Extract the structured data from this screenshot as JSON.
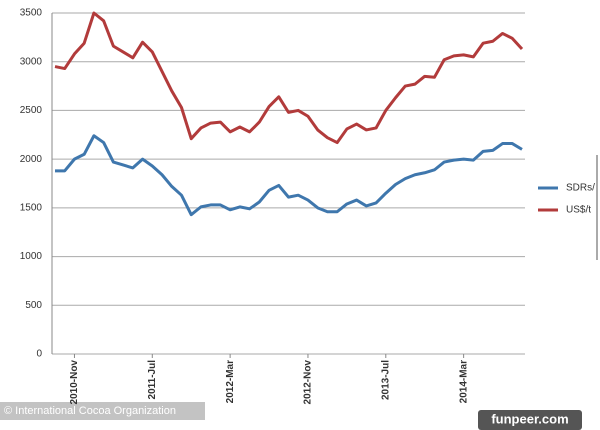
{
  "chart_data": {
    "type": "line",
    "categories": [
      null,
      null,
      "2010-Nov",
      null,
      null,
      null,
      null,
      null,
      null,
      null,
      "2011-Jul",
      null,
      null,
      null,
      null,
      null,
      null,
      null,
      "2012-Mar",
      null,
      null,
      null,
      null,
      null,
      null,
      null,
      "2012-Nov",
      null,
      null,
      null,
      null,
      null,
      null,
      null,
      "2013-Jul",
      null,
      null,
      null,
      null,
      null,
      null,
      null,
      "2014-Mar",
      null,
      null,
      null,
      null,
      null,
      null
    ],
    "series": [
      {
        "name": "SDRs/",
        "color": "#3f77ad",
        "values": [
          1880,
          1880,
          2000,
          2050,
          2240,
          2170,
          1970,
          1940,
          1910,
          2000,
          1930,
          1840,
          1720,
          1630,
          1430,
          1510,
          1530,
          1530,
          1480,
          1510,
          1490,
          1560,
          1680,
          1730,
          1610,
          1630,
          1580,
          1500,
          1460,
          1460,
          1540,
          1580,
          1520,
          1550,
          1650,
          1740,
          1800,
          1840,
          1860,
          1890,
          1970,
          1990,
          2000,
          1990,
          2080,
          2090,
          2160,
          2160,
          2100
        ]
      },
      {
        "name": "US$/t",
        "color": "#b23b3b",
        "values": [
          2950,
          2930,
          3080,
          3190,
          3500,
          3420,
          3160,
          3100,
          3040,
          3200,
          3100,
          2900,
          2700,
          2530,
          2210,
          2320,
          2370,
          2380,
          2280,
          2330,
          2280,
          2380,
          2540,
          2640,
          2480,
          2500,
          2440,
          2300,
          2220,
          2170,
          2310,
          2360,
          2300,
          2320,
          2500,
          2630,
          2750,
          2770,
          2850,
          2840,
          3020,
          3060,
          3070,
          3050,
          3190,
          3210,
          3290,
          3240,
          3130
        ]
      }
    ],
    "ylim": [
      0,
      3500
    ],
    "yticks": [
      0,
      500,
      1000,
      1500,
      2000,
      2500,
      3000,
      3500
    ],
    "grid": true,
    "legend": "right"
  },
  "credit": "© International Cocoa Organization",
  "watermark": "funpeer.com"
}
